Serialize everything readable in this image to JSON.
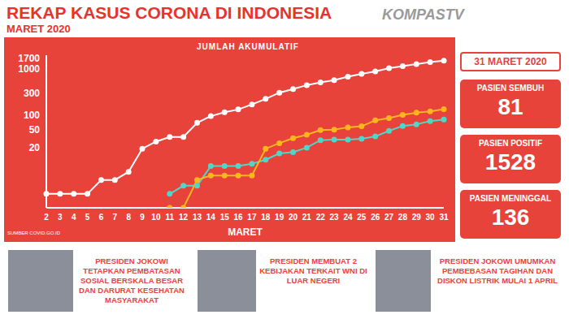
{
  "header": {
    "title": "REKAP KASUS CORONA DI INDONESIA",
    "subtitle": "MARET 2020",
    "logo": "KOMPASTV",
    "date": "31 MARET 2020"
  },
  "chart_data": {
    "type": "line",
    "title": "JUMLAH AKUMULATIF",
    "x_label": "MARET",
    "source": "SUMBER COVID.GO.ID",
    "categories": [
      "2",
      "3",
      "4",
      "5",
      "6",
      "7",
      "8",
      "9",
      "10",
      "11",
      "12",
      "13",
      "14",
      "15",
      "16",
      "17",
      "18",
      "19",
      "20",
      "21",
      "22",
      "23",
      "24",
      "25",
      "26",
      "27",
      "28",
      "29",
      "30",
      "31"
    ],
    "series": [
      {
        "name": "PASIEN SEMBUH",
        "color": "#4fd6c8",
        "marker": "circle",
        "values": [
          null,
          null,
          null,
          null,
          null,
          null,
          null,
          null,
          null,
          2,
          3,
          3,
          8,
          8,
          8,
          9,
          11,
          15,
          16,
          20,
          29,
          30,
          30,
          31,
          35,
          46,
          59,
          64,
          75,
          81
        ]
      },
      {
        "name": "PASIEN POSITIF",
        "color": "#ffffff",
        "marker": "circle",
        "values": [
          2,
          2,
          2,
          2,
          4,
          4,
          6,
          19,
          27,
          34,
          34,
          69,
          96,
          117,
          134,
          172,
          227,
          309,
          369,
          450,
          514,
          579,
          686,
          790,
          893,
          1046,
          1155,
          1285,
          1414,
          1528
        ]
      },
      {
        "name": "PASIEN MENINGGAL",
        "color": "#ffb61e",
        "marker": "circle",
        "values": [
          null,
          null,
          null,
          null,
          null,
          null,
          null,
          null,
          null,
          1,
          1,
          4,
          5,
          5,
          5,
          5,
          19,
          25,
          32,
          38,
          48,
          49,
          55,
          58,
          78,
          87,
          102,
          114,
          122,
          136
        ]
      }
    ],
    "log": "y",
    "ylim": [
      1,
      2000
    ],
    "yticks": [
      20,
      50,
      100,
      300,
      1000,
      1700
    ],
    "grid": false
  },
  "news": [
    {
      "text": "PRESIDEN JOKOWI TETAPKAN PEMBATASAN SOSIAL BERSKALA BESAR DAN DARURAT KESEHATAN MASYARAKAT"
    },
    {
      "text": "PRESIDEN MEMBUAT 2 KEBIJAKAN TERKAIT WNI DI LUAR NEGERI"
    },
    {
      "text": "PRESIDEN JOKOWI UMUMKAN PEMBEBASAN TAGIHAN DAN DISKON LISTRIK MULAI 1 APRIL"
    }
  ]
}
